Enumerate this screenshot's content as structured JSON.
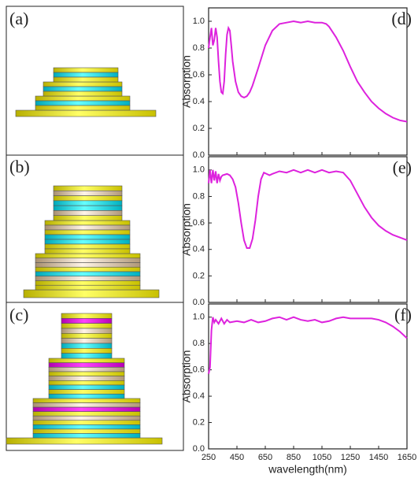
{
  "structure_labels": [
    "(a)",
    "(b)",
    "(c)"
  ],
  "chart_data": [
    {
      "type": "line",
      "label": "(d)",
      "ylabel": "Absorption",
      "color": "#dd22dd",
      "xlim": [
        250,
        1650
      ],
      "xticks": [
        250,
        450,
        650,
        850,
        1050,
        1250,
        1450,
        1650
      ],
      "xtick_labels": false,
      "ylim": [
        0,
        1.1
      ],
      "yticks": [
        {
          "value": 0,
          "label": "0.0"
        },
        0.2,
        0.4,
        0.6,
        0.8,
        {
          "value": 1,
          "label": "1.0"
        }
      ],
      "x": [
        250,
        260,
        270,
        280,
        290,
        300,
        310,
        320,
        330,
        340,
        350,
        360,
        370,
        380,
        390,
        400,
        410,
        420,
        440,
        460,
        480,
        500,
        520,
        540,
        560,
        600,
        650,
        700,
        750,
        800,
        850,
        900,
        950,
        1000,
        1050,
        1080,
        1100,
        1150,
        1200,
        1250,
        1300,
        1350,
        1400,
        1450,
        1500,
        1550,
        1600,
        1650
      ],
      "values": [
        0.8,
        0.88,
        0.95,
        0.82,
        0.86,
        0.95,
        0.88,
        0.7,
        0.55,
        0.47,
        0.46,
        0.55,
        0.75,
        0.9,
        0.95,
        0.93,
        0.82,
        0.7,
        0.55,
        0.47,
        0.44,
        0.43,
        0.44,
        0.47,
        0.52,
        0.65,
        0.82,
        0.93,
        0.98,
        0.99,
        1.0,
        0.99,
        1.0,
        0.99,
        0.99,
        0.98,
        0.96,
        0.88,
        0.78,
        0.66,
        0.55,
        0.47,
        0.4,
        0.35,
        0.31,
        0.28,
        0.26,
        0.25
      ]
    },
    {
      "type": "line",
      "label": "(e)",
      "ylabel": "Absorption",
      "color": "#dd22dd",
      "xlim": [
        250,
        1650
      ],
      "xticks": [
        250,
        450,
        650,
        850,
        1050,
        1250,
        1450,
        1650
      ],
      "xtick_labels": false,
      "ylim": [
        0,
        1.1
      ],
      "yticks": [
        {
          "value": 0,
          "label": "0.0"
        },
        0.2,
        0.4,
        0.6,
        0.8,
        {
          "value": 1,
          "label": "1.0"
        }
      ],
      "x": [
        250,
        260,
        270,
        280,
        290,
        300,
        310,
        320,
        330,
        340,
        350,
        380,
        400,
        420,
        440,
        460,
        480,
        500,
        520,
        540,
        560,
        580,
        600,
        620,
        640,
        660,
        680,
        700,
        750,
        800,
        850,
        900,
        950,
        1000,
        1050,
        1100,
        1150,
        1200,
        1250,
        1300,
        1350,
        1400,
        1450,
        1500,
        1550,
        1600,
        1650
      ],
      "values": [
        0.9,
        1.0,
        0.9,
        1.0,
        0.92,
        0.99,
        0.9,
        0.97,
        0.92,
        0.95,
        0.96,
        0.97,
        0.96,
        0.93,
        0.87,
        0.75,
        0.6,
        0.47,
        0.41,
        0.41,
        0.48,
        0.62,
        0.8,
        0.93,
        0.98,
        0.97,
        0.96,
        0.97,
        0.99,
        0.98,
        1.0,
        0.98,
        1.0,
        0.98,
        1.0,
        0.98,
        0.99,
        0.98,
        0.92,
        0.82,
        0.72,
        0.64,
        0.58,
        0.54,
        0.51,
        0.49,
        0.47
      ]
    },
    {
      "type": "line",
      "label": "(f)",
      "ylabel": "Absorption",
      "xlabel": "wavelength(nm)",
      "color": "#dd22dd",
      "xlim": [
        250,
        1650
      ],
      "xticks": [
        250,
        450,
        650,
        850,
        1050,
        1250,
        1450,
        1650
      ],
      "xtick_labels": true,
      "ylim": [
        0,
        1.1
      ],
      "yticks": [
        {
          "value": 0,
          "label": "0.0"
        },
        0.2,
        0.4,
        0.6,
        0.8,
        {
          "value": 1,
          "label": "1.0"
        }
      ],
      "x": [
        250,
        260,
        270,
        280,
        290,
        300,
        320,
        340,
        360,
        380,
        400,
        450,
        500,
        550,
        600,
        650,
        700,
        750,
        800,
        850,
        900,
        950,
        1000,
        1050,
        1100,
        1150,
        1200,
        1250,
        1300,
        1350,
        1400,
        1450,
        1500,
        1550,
        1600,
        1650
      ],
      "values": [
        0.57,
        0.62,
        0.9,
        1.0,
        0.96,
        0.98,
        0.95,
        0.99,
        0.95,
        0.98,
        0.96,
        0.97,
        0.96,
        0.98,
        0.96,
        0.97,
        0.99,
        1.0,
        0.98,
        1.0,
        0.98,
        0.97,
        0.98,
        0.96,
        0.97,
        0.99,
        1.0,
        0.99,
        0.99,
        0.99,
        0.99,
        0.98,
        0.96,
        0.93,
        0.89,
        0.84
      ]
    }
  ]
}
